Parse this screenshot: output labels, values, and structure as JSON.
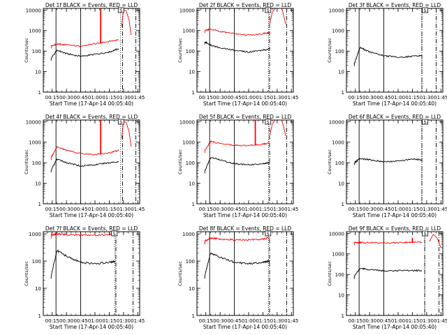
{
  "figure": {
    "x_tick_labels": [
      "00:15",
      "00:30",
      "00:45",
      "01:00",
      "01:15",
      "01:30",
      "01:45"
    ],
    "y_tick_labels": [
      "1",
      "10",
      "100",
      "1000",
      "10000"
    ],
    "colors": {
      "events": "#000000",
      "lld": "#ff0000",
      "axes": "#000000"
    }
  },
  "chart_data": [
    {
      "type": "line",
      "title": "Det 1f BLACK = Events, RED = LLD",
      "xlabel": "Start Time (17-Apr-14 00:05:40)",
      "ylabel": "Counts/sec",
      "ylog": true,
      "ylim": [
        1,
        12000
      ],
      "xlim": [
        "00:05:40",
        "01:47:00"
      ],
      "x": [
        "00:14",
        "00:20",
        "00:30",
        "00:45",
        "01:00",
        "01:15",
        "01:25"
      ],
      "series": [
        {
          "name": "BLACK = Events",
          "values": [
            45,
            110,
            75,
            55,
            70,
            90,
            130
          ]
        },
        {
          "name": "RED = LLD",
          "values": [
            180,
            220,
            200,
            170,
            230,
            300,
            350
          ]
        }
      ],
      "lld_spike": {
        "x": "01:06",
        "value": 12000
      },
      "lld_flare": [
        [
          "01:28",
          1500
        ],
        [
          "01:30",
          10000
        ],
        [
          "01:33",
          9000
        ],
        [
          "01:36",
          3000
        ],
        [
          "01:38",
          600
        ]
      ],
      "vlines_solid": [
        "00:19",
        "00:45"
      ],
      "vlines_dotted": [
        "01:27"
      ],
      "vlines_dashdot": [
        "01:29",
        "01:43"
      ],
      "marker": {
        "label": "S",
        "x": "01:27"
      }
    },
    {
      "type": "line",
      "title": "Det 2f BLACK = Events, RED = LLD",
      "xlabel": "Start Time (17-Apr-14 00:05:40)",
      "ylabel": "Counts/sec",
      "ylog": true,
      "ylim": [
        1,
        12000
      ],
      "xlim": [
        "00:05:40",
        "01:47:00"
      ],
      "x": [
        "00:14",
        "00:20",
        "00:30",
        "00:45",
        "01:00",
        "01:15",
        "01:22"
      ],
      "series": [
        {
          "name": "BLACK = Events",
          "values": [
            280,
            200,
            140,
            110,
            90,
            110,
            130
          ]
        },
        {
          "name": "RED = LLD",
          "values": [
            1000,
            1200,
            900,
            700,
            600,
            700,
            800
          ]
        }
      ],
      "lld_flare": [
        [
          "01:22",
          2000
        ],
        [
          "01:25",
          8000
        ],
        [
          "01:30",
          15000
        ],
        [
          "01:35",
          12000
        ],
        [
          "01:39",
          2000
        ]
      ],
      "vlines_solid": [
        "00:19",
        "00:45"
      ],
      "vlines_dotted": [
        "01:21"
      ],
      "vlines_dashdot": [
        "01:22",
        "01:40"
      ],
      "marker": {
        "label": "S",
        "x": "01:20"
      }
    },
    {
      "type": "line",
      "title": "Det 3f BLACK = Events, RED = LLD",
      "xlabel": "Start Time (17-Apr-14 00:05:40)",
      "ylabel": "Counts/sec",
      "ylog": true,
      "ylim": [
        1,
        12000
      ],
      "xlim": [
        "00:05:40",
        "01:47:00"
      ],
      "x": [
        "00:14",
        "00:20",
        "00:30",
        "00:45",
        "01:00",
        "01:15",
        "01:25"
      ],
      "series": [
        {
          "name": "BLACK = Events",
          "values": [
            25,
            150,
            90,
            60,
            50,
            55,
            60
          ]
        }
      ],
      "vlines_solid": [
        "00:19",
        "00:45"
      ],
      "vlines_dotted": [
        "01:25"
      ],
      "vlines_dashdot": [
        "01:25",
        "01:40"
      ],
      "marker": {
        "label": "S",
        "x": "01:28"
      }
    },
    {
      "type": "line",
      "title": "Det 4f BLACK = Events, RED = LLD",
      "xlabel": "Start Time (17-Apr-14 00:05:40)",
      "ylabel": "Counts/sec",
      "ylog": true,
      "ylim": [
        1,
        12000
      ],
      "xlim": [
        "00:05:40",
        "01:47:00"
      ],
      "x": [
        "00:14",
        "00:20",
        "00:30",
        "00:45",
        "01:00",
        "01:15",
        "01:25"
      ],
      "series": [
        {
          "name": "BLACK = Events",
          "values": [
            45,
            150,
            100,
            70,
            80,
            100,
            110
          ]
        },
        {
          "name": "RED = LLD",
          "values": [
            180,
            600,
            400,
            280,
            250,
            300,
            400
          ]
        }
      ],
      "lld_spike": {
        "x": "01:06",
        "value": 12000
      },
      "lld_flare": [
        [
          "01:28",
          1500
        ],
        [
          "01:30",
          10000
        ],
        [
          "01:33",
          9000
        ],
        [
          "01:36",
          3000
        ],
        [
          "01:38",
          600
        ]
      ],
      "vlines_solid": [
        "00:19",
        "00:45"
      ],
      "vlines_dotted": [
        "01:27"
      ],
      "vlines_dashdot": [
        "01:29",
        "01:43"
      ],
      "marker": {
        "label": "S",
        "x": "01:27"
      }
    },
    {
      "type": "line",
      "title": "Det 5f BLACK = Events, RED = LLD",
      "xlabel": "Start Time (17-Apr-14 00:05:40)",
      "ylabel": "Counts/sec",
      "ylog": true,
      "ylim": [
        1,
        12000
      ],
      "xlim": [
        "00:05:40",
        "01:47:00"
      ],
      "x": [
        "00:14",
        "00:20",
        "00:30",
        "00:45",
        "01:00",
        "01:15",
        "01:22"
      ],
      "series": [
        {
          "name": "BLACK = Events",
          "values": [
            40,
            180,
            140,
            90,
            80,
            90,
            100
          ]
        },
        {
          "name": "RED = LLD",
          "values": [
            400,
            1100,
            900,
            700,
            700,
            800,
            900
          ]
        }
      ],
      "lld_spike": {
        "x": "01:07",
        "value": 12000
      },
      "lld_flare": [
        [
          "01:22",
          2000
        ],
        [
          "01:25",
          8000
        ],
        [
          "01:30",
          15000
        ],
        [
          "01:35",
          12000
        ],
        [
          "01:39",
          2000
        ]
      ],
      "vlines_solid": [
        "00:19",
        "00:45"
      ],
      "vlines_dotted": [
        "01:21"
      ],
      "vlines_dashdot": [
        "01:22",
        "01:40"
      ],
      "marker": {
        "label": "S",
        "x": "01:20"
      }
    },
    {
      "type": "line",
      "title": "Det 6f BLACK = Events, RED = LLD",
      "xlabel": "Start Time (17-Apr-14 00:05:40)",
      "ylabel": "Counts/sec",
      "ylog": true,
      "ylim": [
        1,
        12000
      ],
      "xlim": [
        "00:05:40",
        "01:47:00"
      ],
      "x": [
        "00:14",
        "00:20",
        "00:30",
        "00:45",
        "01:00",
        "01:15",
        "01:25"
      ],
      "series": [
        {
          "name": "BLACK = Events",
          "values": [
            100,
            160,
            140,
            110,
            120,
            150,
            140
          ]
        }
      ],
      "vlines_solid": [
        "00:19",
        "00:45"
      ],
      "vlines_dotted": [
        "01:25"
      ],
      "vlines_dashdot": [
        "01:25",
        "01:40"
      ],
      "marker": {
        "label": "S",
        "x": "01:28"
      }
    },
    {
      "type": "line",
      "title": "Det 7f BLACK = Events, RED = LLD",
      "xlabel": "Start Time (17-Apr-14 00:05:40)",
      "ylabel": "Counts/sec",
      "ylog": true,
      "ylim": [
        1,
        1200
      ],
      "xlim": [
        "00:05:40",
        "01:47:00"
      ],
      "x": [
        "00:14",
        "00:20",
        "00:30",
        "00:45",
        "01:00",
        "01:15",
        "01:22"
      ],
      "series": [
        {
          "name": "BLACK = Events",
          "values": [
            30,
            250,
            150,
            90,
            80,
            90,
            100
          ]
        },
        {
          "name": "RED = LLD",
          "values": [
            900,
            1000,
            950,
            900,
            900,
            950,
            1000
          ]
        }
      ],
      "vlines_solid": [
        "00:19",
        "00:45"
      ],
      "vlines_dotted": [
        "01:21"
      ],
      "vlines_dashdot": [
        "01:22",
        "01:40"
      ],
      "marker": {
        "label": "S",
        "x": "01:20"
      }
    },
    {
      "type": "line",
      "title": "Det 8f BLACK = Events, RED = LLD",
      "xlabel": "Start Time (17-Apr-14 00:05:40)",
      "ylabel": "Counts/sec",
      "ylog": true,
      "ylim": [
        1,
        1200
      ],
      "xlim": [
        "00:05:40",
        "01:47:00"
      ],
      "x": [
        "00:14",
        "00:20",
        "00:30",
        "00:45",
        "01:00",
        "01:15",
        "01:22"
      ],
      "series": [
        {
          "name": "BLACK = Events",
          "values": [
            30,
            200,
            140,
            90,
            80,
            90,
            100
          ]
        },
        {
          "name": "RED = LLD",
          "values": [
            550,
            700,
            650,
            600,
            600,
            650,
            700
          ]
        }
      ],
      "vlines_solid": [
        "00:19",
        "00:45"
      ],
      "vlines_dotted": [
        "01:21"
      ],
      "vlines_dashdot": [
        "01:22",
        "01:40"
      ],
      "marker": {
        "label": "S",
        "x": "01:20"
      }
    },
    {
      "type": "line",
      "title": "Det 9f BLACK = Events, RED = LLD",
      "xlabel": "Start Time (17-Apr-14 00:05:40)",
      "ylabel": "Counts/sec",
      "ylog": true,
      "ylim": [
        1,
        12000
      ],
      "xlim": [
        "00:05:40",
        "01:47:00"
      ],
      "x": [
        "00:14",
        "00:20",
        "00:30",
        "00:45",
        "01:00",
        "01:15",
        "01:25"
      ],
      "series": [
        {
          "name": "BLACK = Events",
          "values": [
            80,
            200,
            170,
            150,
            150,
            155,
            155
          ]
        },
        {
          "name": "RED = LLD",
          "values": [
            3500,
            3600,
            3500,
            3400,
            3500,
            3600,
            3700
          ]
        }
      ],
      "lld_spike": {
        "x": "01:15",
        "value": 6000
      },
      "lld_flare": [
        [
          "01:33",
          4000
        ],
        [
          "01:37",
          9000
        ],
        [
          "01:41",
          6000
        ],
        [
          "01:45",
          2000
        ]
      ],
      "vlines_solid": [
        "00:19",
        "00:45"
      ],
      "vlines_dotted": [
        "01:28"
      ],
      "vlines_dashdot": [
        "01:28",
        "01:43"
      ],
      "marker": {
        "label": "S",
        "x": "01:28"
      }
    }
  ]
}
